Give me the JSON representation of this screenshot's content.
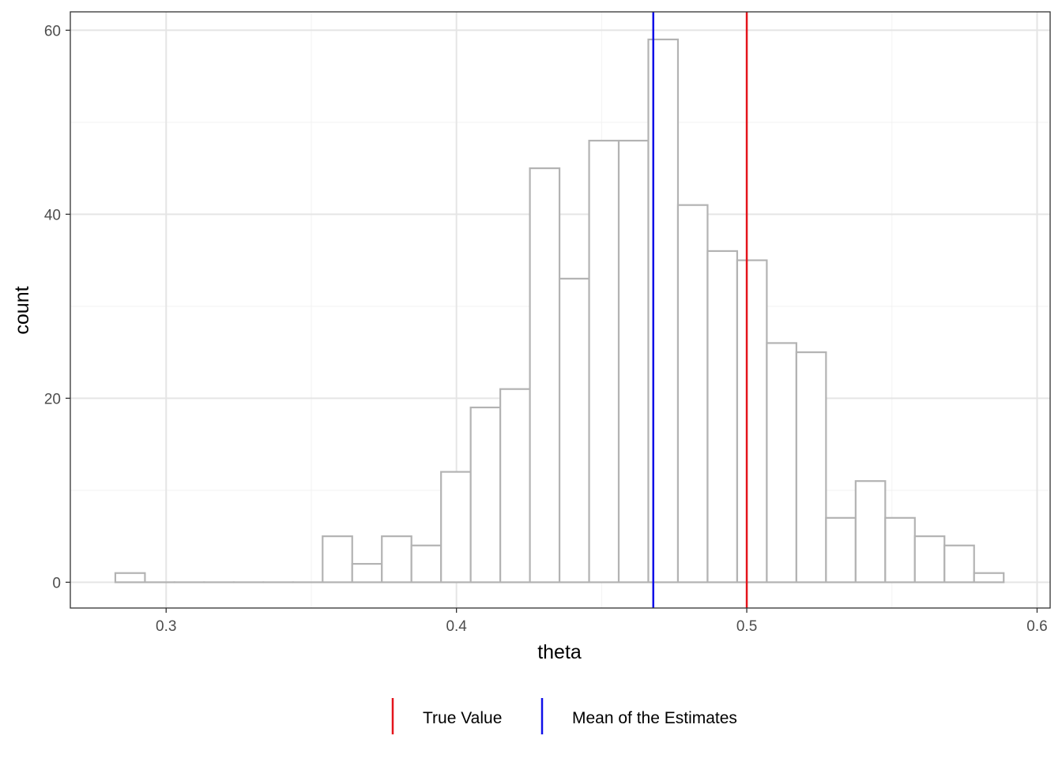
{
  "chart_data": {
    "type": "bar",
    "subtype": "histogram",
    "title": "",
    "xlabel": "theta",
    "ylabel": "count",
    "xlim": [
      0.267,
      0.6045
    ],
    "ylim": [
      -2.8,
      62
    ],
    "x_ticks": [
      0.3,
      0.4,
      0.5,
      0.6
    ],
    "x_tick_labels": [
      "0.3",
      "0.4",
      "0.5",
      "0.6"
    ],
    "y_ticks": [
      0,
      20,
      40,
      60
    ],
    "y_tick_labels": [
      "0",
      "20",
      "40",
      "60"
    ],
    "grid": true,
    "bins": [
      {
        "x0": 0.2825,
        "x1": 0.2927,
        "count": 1
      },
      {
        "x0": 0.2927,
        "x1": 0.3029,
        "count": 0
      },
      {
        "x0": 0.3029,
        "x1": 0.3131,
        "count": 0
      },
      {
        "x0": 0.3131,
        "x1": 0.3233,
        "count": 0
      },
      {
        "x0": 0.3233,
        "x1": 0.3335,
        "count": 0
      },
      {
        "x0": 0.3335,
        "x1": 0.3437,
        "count": 0
      },
      {
        "x0": 0.3437,
        "x1": 0.3539,
        "count": 0
      },
      {
        "x0": 0.3539,
        "x1": 0.3641,
        "count": 5
      },
      {
        "x0": 0.3641,
        "x1": 0.3743,
        "count": 2
      },
      {
        "x0": 0.3743,
        "x1": 0.3845,
        "count": 5
      },
      {
        "x0": 0.3845,
        "x1": 0.3947,
        "count": 4
      },
      {
        "x0": 0.3947,
        "x1": 0.4049,
        "count": 12
      },
      {
        "x0": 0.4049,
        "x1": 0.4151,
        "count": 19
      },
      {
        "x0": 0.4151,
        "x1": 0.4253,
        "count": 21
      },
      {
        "x0": 0.4253,
        "x1": 0.4355,
        "count": 45
      },
      {
        "x0": 0.4355,
        "x1": 0.4457,
        "count": 33
      },
      {
        "x0": 0.4457,
        "x1": 0.4559,
        "count": 48
      },
      {
        "x0": 0.4559,
        "x1": 0.4661,
        "count": 48
      },
      {
        "x0": 0.4661,
        "x1": 0.4763,
        "count": 59
      },
      {
        "x0": 0.4763,
        "x1": 0.4865,
        "count": 41
      },
      {
        "x0": 0.4865,
        "x1": 0.4967,
        "count": 36
      },
      {
        "x0": 0.4967,
        "x1": 0.5069,
        "count": 35
      },
      {
        "x0": 0.5069,
        "x1": 0.5171,
        "count": 26
      },
      {
        "x0": 0.5171,
        "x1": 0.5273,
        "count": 25
      },
      {
        "x0": 0.5273,
        "x1": 0.5375,
        "count": 7
      },
      {
        "x0": 0.5375,
        "x1": 0.5477,
        "count": 11
      },
      {
        "x0": 0.5477,
        "x1": 0.5579,
        "count": 7
      },
      {
        "x0": 0.5579,
        "x1": 0.5681,
        "count": 5
      },
      {
        "x0": 0.5681,
        "x1": 0.5783,
        "count": 4
      },
      {
        "x0": 0.5783,
        "x1": 0.5885,
        "count": 1
      }
    ],
    "vlines": [
      {
        "name": "True Value",
        "x": 0.5,
        "color": "#e4141b"
      },
      {
        "name": "Mean of the Estimates",
        "x": 0.4678,
        "color": "#1010e8"
      }
    ],
    "legend": {
      "position": "bottom",
      "items": [
        {
          "label": "True Value",
          "color": "#e4141b"
        },
        {
          "label": "Mean of the Estimates",
          "color": "#1010e8"
        }
      ]
    },
    "colors": {
      "bar_fill": "#ffffff",
      "bar_outline": "#b3b3b3",
      "grid_major": "#e5e5e5",
      "grid_minor": "#f2f2f2",
      "panel_border": "#333333"
    }
  }
}
